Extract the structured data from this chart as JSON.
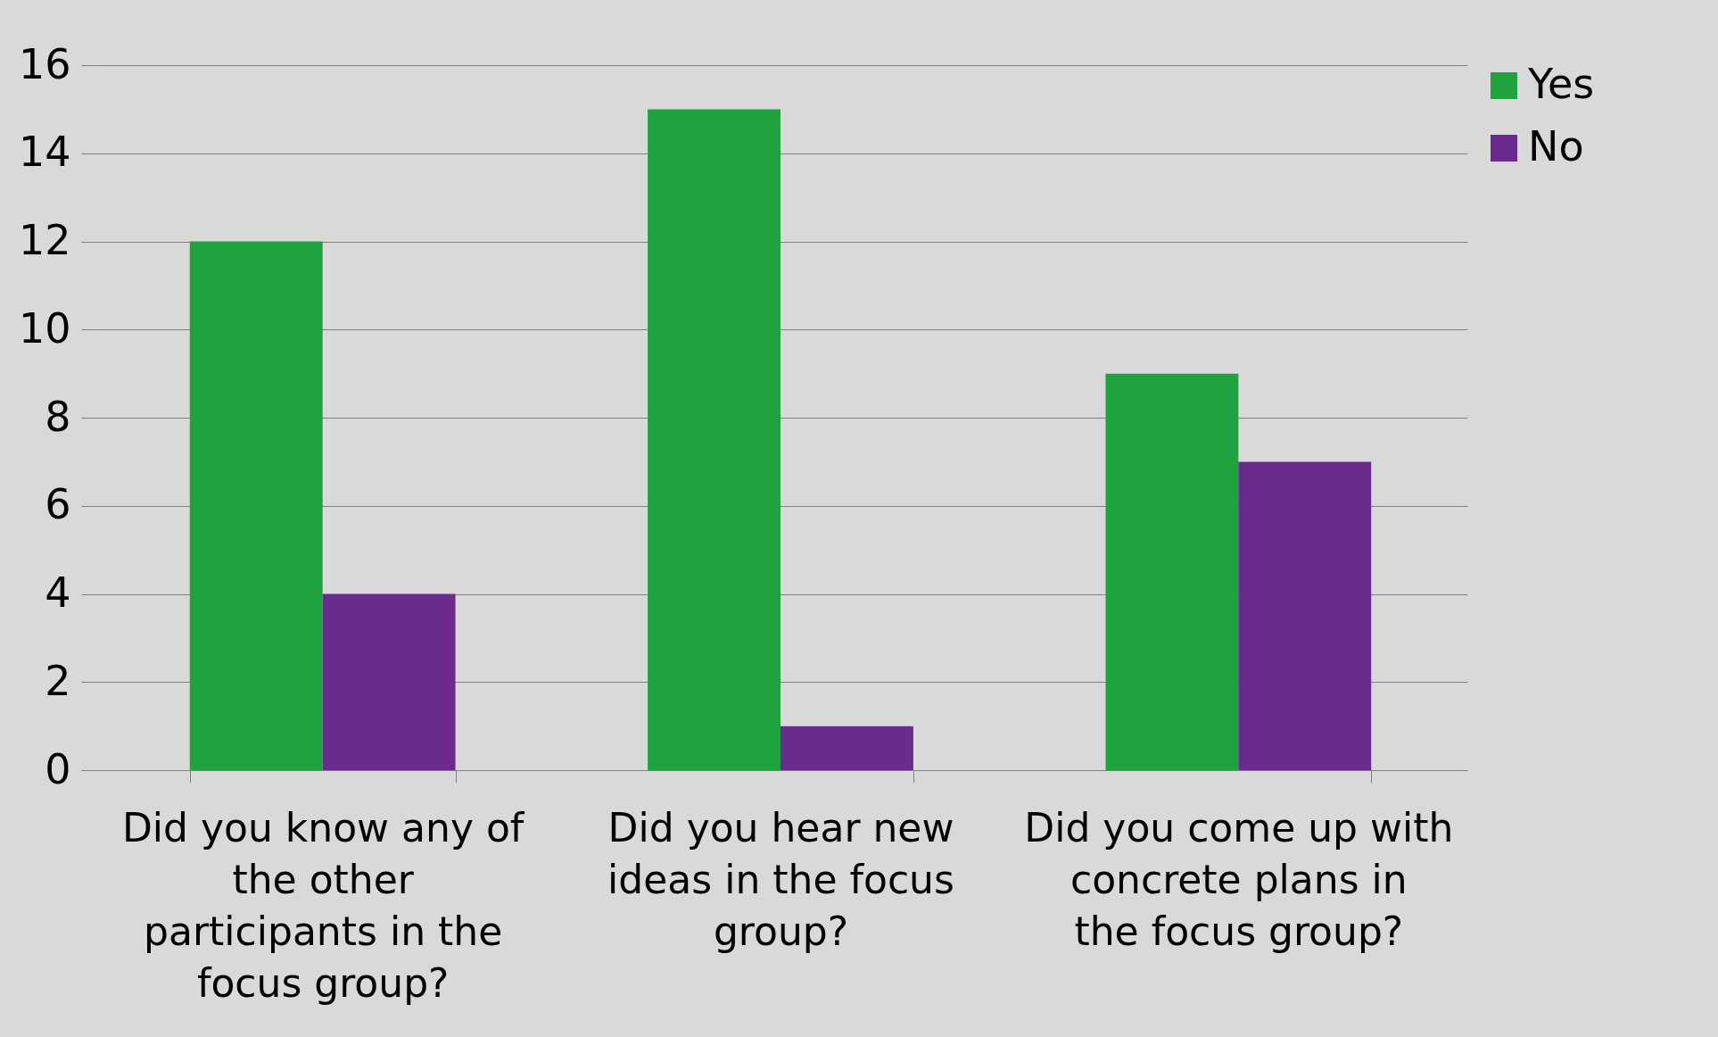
{
  "chart_data": {
    "type": "bar",
    "categories": [
      "Did you know any of the other participants in the focus group?",
      "Did you hear new ideas in the focus group?",
      "Did you come up with concrete plans in the focus group?"
    ],
    "series": [
      {
        "name": "Yes",
        "color": "#1ea33e",
        "values": [
          12,
          15,
          9
        ]
      },
      {
        "name": "No",
        "color": "#6a2a8e",
        "values": [
          4,
          1,
          7
        ]
      }
    ],
    "ylim": [
      0,
      16
    ],
    "yticks": [
      0,
      2,
      4,
      6,
      8,
      10,
      12,
      14,
      16
    ],
    "grid": "y",
    "legend": "right"
  }
}
